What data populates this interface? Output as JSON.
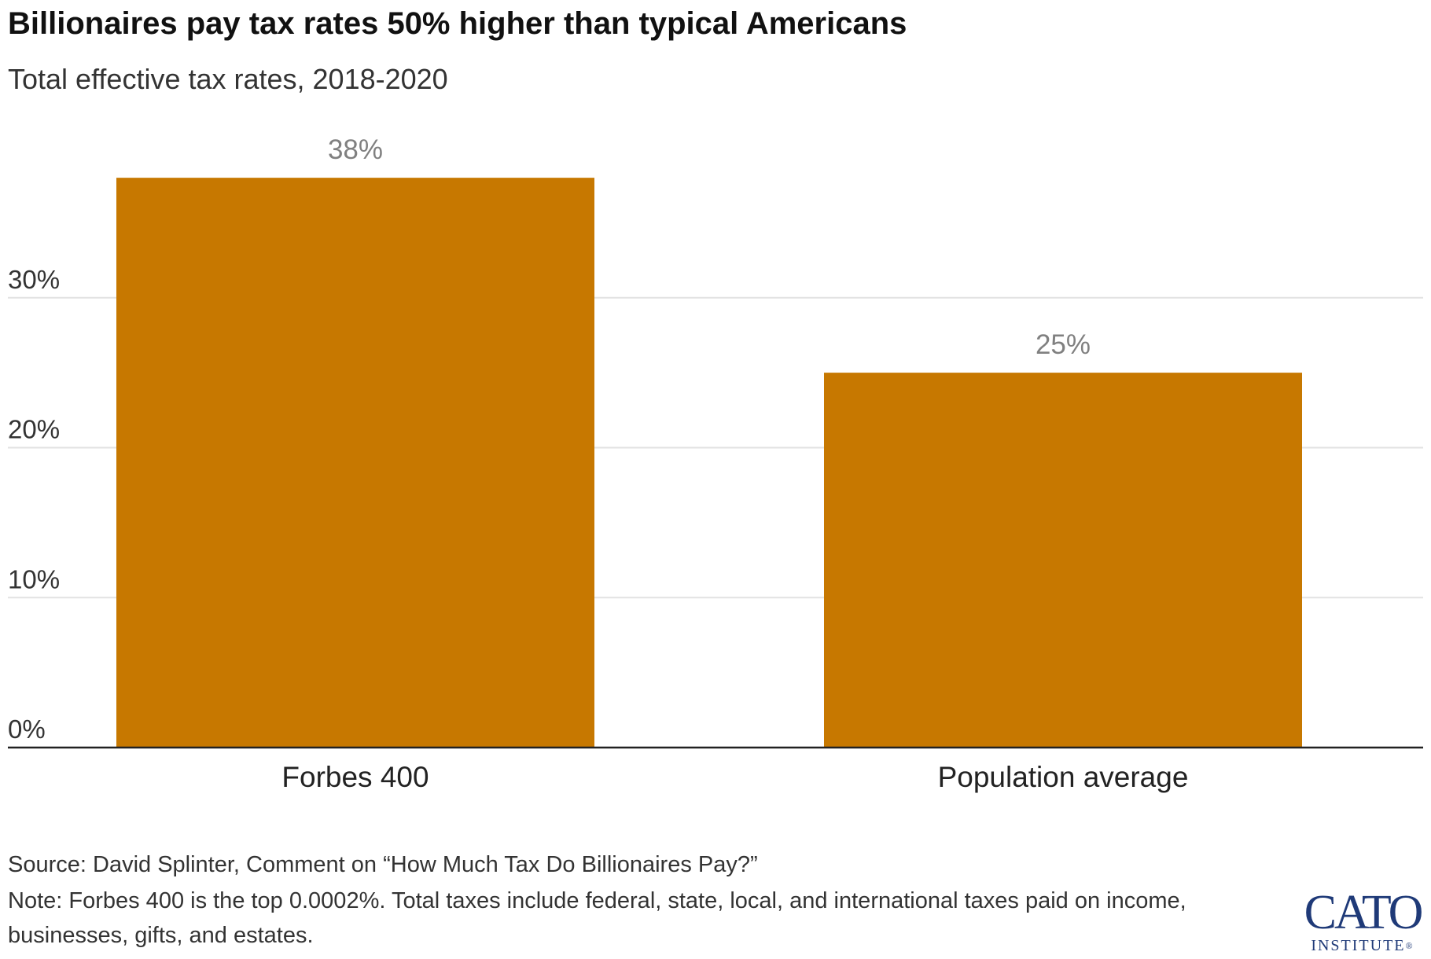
{
  "chart_data": {
    "type": "bar",
    "title": "Billionaires pay tax rates 50% higher than typical Americans",
    "subtitle": "Total effective tax rates, 2018-2020",
    "categories": [
      "Forbes 400",
      "Population average"
    ],
    "values": [
      38,
      25
    ],
    "data_labels": [
      "38%",
      "25%"
    ],
    "yticks": [
      0,
      10,
      20,
      30
    ],
    "ytick_labels": [
      "0%",
      "10%",
      "20%",
      "30%"
    ],
    "ylim": [
      0,
      40
    ],
    "grid": true,
    "legend": "none",
    "xlabel": "",
    "ylabel": "",
    "bar_color": "#c77800",
    "label_color": "#808080",
    "grid_color": "#e2e2e2"
  },
  "footer": {
    "source": "Source: David Splinter, Comment on “How Much Tax Do Billionaires Pay?”",
    "note": "Note: Forbes 400 is the top 0.0002%. Total taxes include federal, state, local, and international taxes paid on income, businesses, gifts, and estates."
  },
  "logo": {
    "main": "CATO",
    "sub": "INSTITUTE",
    "reg": "®"
  }
}
